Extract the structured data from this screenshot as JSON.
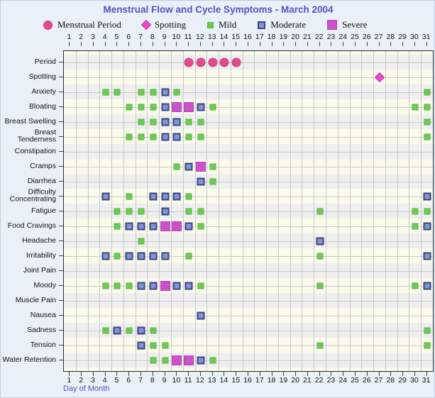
{
  "title": "Menstrual Flow and Cycle Symptoms - March 2004",
  "xlabel": "Day of Month",
  "legend": [
    {
      "label": "Menstrual Period",
      "marker": "period"
    },
    {
      "label": "Spotting",
      "marker": "spotting"
    },
    {
      "label": "Mild",
      "marker": "mild"
    },
    {
      "label": "Moderate",
      "marker": "moderate"
    },
    {
      "label": "Severe",
      "marker": "severe"
    }
  ],
  "colors": {
    "title_text": "#5b50c0",
    "axis_title_text": "#5b50c0",
    "period": "#e04a8e",
    "spotting": "#ee46cc",
    "mild": "#6ccb53",
    "moderate_fill": "#8494d8",
    "moderate_border": "#3a467f",
    "severe": "#cb52cb",
    "band_gray": "#efefef",
    "band_cream": "#fbfbec",
    "gridline": "#c9c9c9",
    "page_background": "#eaf0f8"
  },
  "chart_data": {
    "type": "scatter",
    "title": "Menstrual Flow and Cycle Symptoms - March 2004",
    "xlabel": "Day of Month",
    "x_min": 1,
    "x_max": 31,
    "x_ticks": [
      1,
      2,
      3,
      4,
      5,
      6,
      7,
      8,
      9,
      10,
      11,
      12,
      13,
      14,
      15,
      16,
      17,
      18,
      19,
      20,
      21,
      22,
      23,
      24,
      25,
      26,
      27,
      28,
      29,
      30,
      31
    ],
    "grid": true,
    "legend_position": "top",
    "severity_levels": [
      "Menstrual Period",
      "Spotting",
      "Mild",
      "Moderate",
      "Severe"
    ],
    "rows": [
      {
        "label": "Period",
        "label_lines": [
          "Period"
        ],
        "period": [
          11,
          12,
          13,
          14,
          15
        ],
        "spotting": [],
        "mild": [],
        "moderate": [],
        "severe": []
      },
      {
        "label": "Spotting",
        "label_lines": [
          "Spotting"
        ],
        "period": [],
        "spotting": [
          27
        ],
        "mild": [],
        "moderate": [],
        "severe": []
      },
      {
        "label": "Anxiety",
        "label_lines": [
          "Anxiety"
        ],
        "period": [],
        "spotting": [],
        "mild": [
          4,
          5,
          7,
          8,
          10,
          31
        ],
        "moderate": [
          9
        ],
        "severe": []
      },
      {
        "label": "Bloating",
        "label_lines": [
          "Bloating"
        ],
        "period": [],
        "spotting": [],
        "mild": [
          6,
          7,
          8,
          13,
          30,
          31
        ],
        "moderate": [
          9,
          12
        ],
        "severe": [
          10,
          11
        ]
      },
      {
        "label": "Breast Swelling",
        "label_lines": [
          "Breast Swelling"
        ],
        "period": [],
        "spotting": [],
        "mild": [
          7,
          8,
          11,
          12,
          31
        ],
        "moderate": [
          9,
          10
        ],
        "severe": []
      },
      {
        "label": "Breast Tenderness",
        "label_lines": [
          "Breast",
          "Tenderness"
        ],
        "period": [],
        "spotting": [],
        "mild": [
          6,
          7,
          8,
          11,
          12,
          31
        ],
        "moderate": [
          9,
          10
        ],
        "severe": []
      },
      {
        "label": "Constipation",
        "label_lines": [
          "Constipation"
        ],
        "period": [],
        "spotting": [],
        "mild": [],
        "moderate": [],
        "severe": []
      },
      {
        "label": "Cramps",
        "label_lines": [
          "Cramps"
        ],
        "period": [],
        "spotting": [],
        "mild": [
          10,
          13
        ],
        "moderate": [
          11
        ],
        "severe": [
          12
        ]
      },
      {
        "label": "Diarrhea",
        "label_lines": [
          "Diarrhea"
        ],
        "period": [],
        "spotting": [],
        "mild": [
          13
        ],
        "moderate": [
          12
        ],
        "severe": []
      },
      {
        "label": "Difficulty Concentrating",
        "label_lines": [
          "Difficulty",
          "Concentrating"
        ],
        "period": [],
        "spotting": [],
        "mild": [
          6,
          11
        ],
        "moderate": [
          4,
          8,
          9,
          10,
          31
        ],
        "severe": []
      },
      {
        "label": "Fatigue",
        "label_lines": [
          "Fatigue"
        ],
        "period": [],
        "spotting": [],
        "mild": [
          5,
          6,
          7,
          11,
          12,
          22,
          30,
          31
        ],
        "moderate": [
          9
        ],
        "severe": []
      },
      {
        "label": "Food Cravings",
        "label_lines": [
          "Food Cravings"
        ],
        "period": [],
        "spotting": [],
        "mild": [
          5,
          12,
          30
        ],
        "moderate": [
          6,
          7,
          8,
          11,
          31
        ],
        "severe": [
          9,
          10
        ]
      },
      {
        "label": "Headache",
        "label_lines": [
          "Headache"
        ],
        "period": [],
        "spotting": [],
        "mild": [
          7
        ],
        "moderate": [
          22
        ],
        "severe": []
      },
      {
        "label": "Irritability",
        "label_lines": [
          "Irritability"
        ],
        "period": [],
        "spotting": [],
        "mild": [
          5,
          11,
          22
        ],
        "moderate": [
          4,
          6,
          7,
          8,
          9,
          31
        ],
        "severe": []
      },
      {
        "label": "Joint Pain",
        "label_lines": [
          "Joint Pain"
        ],
        "period": [],
        "spotting": [],
        "mild": [],
        "moderate": [],
        "severe": []
      },
      {
        "label": "Moody",
        "label_lines": [
          "Moody"
        ],
        "period": [],
        "spotting": [],
        "mild": [
          4,
          5,
          6,
          12,
          22,
          30
        ],
        "moderate": [
          7,
          8,
          10,
          11,
          31
        ],
        "severe": [
          9
        ]
      },
      {
        "label": "Muscle Pain",
        "label_lines": [
          "Muscle Pain"
        ],
        "period": [],
        "spotting": [],
        "mild": [],
        "moderate": [],
        "severe": []
      },
      {
        "label": "Nausea",
        "label_lines": [
          "Nausea"
        ],
        "period": [],
        "spotting": [],
        "mild": [],
        "moderate": [
          12
        ],
        "severe": []
      },
      {
        "label": "Sadness",
        "label_lines": [
          "Sadness"
        ],
        "period": [],
        "spotting": [],
        "mild": [
          4,
          6,
          8,
          31
        ],
        "moderate": [
          5,
          7
        ],
        "severe": []
      },
      {
        "label": "Tension",
        "label_lines": [
          "Tension"
        ],
        "period": [],
        "spotting": [],
        "mild": [
          8,
          9,
          22,
          31
        ],
        "moderate": [
          7
        ],
        "severe": []
      },
      {
        "label": "Water Retention",
        "label_lines": [
          "Water Retention"
        ],
        "period": [],
        "spotting": [],
        "mild": [
          8,
          9,
          13
        ],
        "moderate": [
          12
        ],
        "severe": [
          10,
          11
        ]
      }
    ]
  }
}
